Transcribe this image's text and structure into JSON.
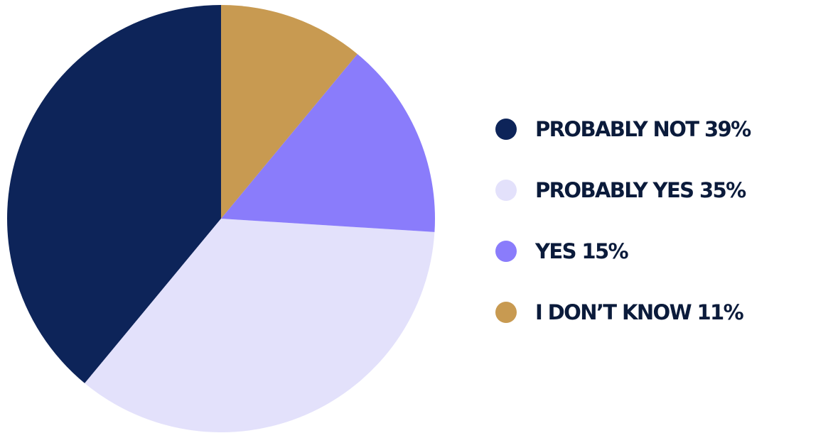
{
  "chart_data": {
    "type": "pie",
    "title": "",
    "slices": [
      {
        "label": "PROBABLY NOT 39%",
        "value": 39,
        "color": "#0d2459"
      },
      {
        "label": "PROBABLY YES 35%",
        "value": 35,
        "color": "#e3e1fb"
      },
      {
        "label": "YES 15%",
        "value": 15,
        "color": "#8a7cfb"
      },
      {
        "label": "I DON’T KNOW 11%",
        "value": 11,
        "color": "#c89a51"
      }
    ],
    "start_angle_deg": 0,
    "direction": "counterclockwise",
    "legend_position": "right",
    "slice_labels_shown": false
  }
}
